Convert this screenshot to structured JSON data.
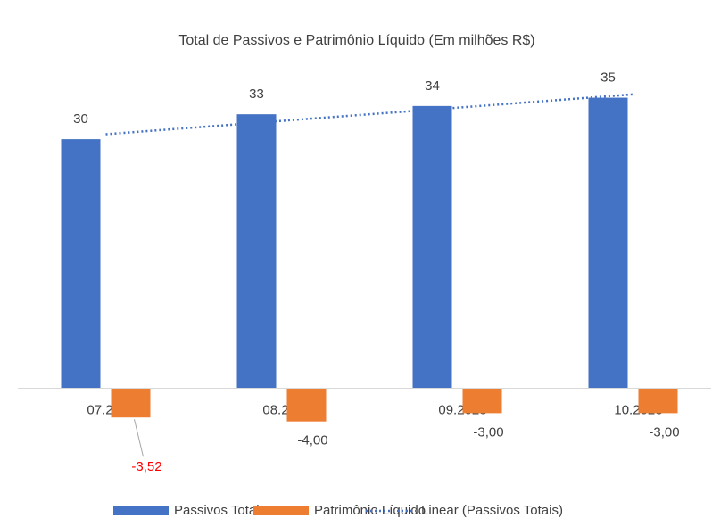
{
  "chart_data": {
    "type": "bar",
    "title": "Total de Passivos e Patrimônio Líquido (Em milhões R$)",
    "categories": [
      "07.2023",
      "08.2023",
      "09.2023",
      "10.2023"
    ],
    "series": [
      {
        "name": "Passivos Totais",
        "color": "#4472c4",
        "values": [
          30,
          33,
          34,
          35
        ]
      },
      {
        "name": "Patrimônio Líquido",
        "color": "#ed7d31",
        "values": [
          -3.52,
          -4.0,
          -3.0,
          -3.0
        ],
        "value_labels": [
          "-3,52",
          "-4,00",
          "-3,00",
          "-3,00"
        ],
        "value_label_colors": [
          "#ff0000",
          "#404040",
          "#404040",
          "#404040"
        ]
      }
    ],
    "trendline": {
      "name": "Linear (Passivos Totais)",
      "type": "linear",
      "series": 0,
      "color": "#4472c4"
    },
    "ylim": [
      -5,
      40
    ],
    "legend": "bottom"
  }
}
